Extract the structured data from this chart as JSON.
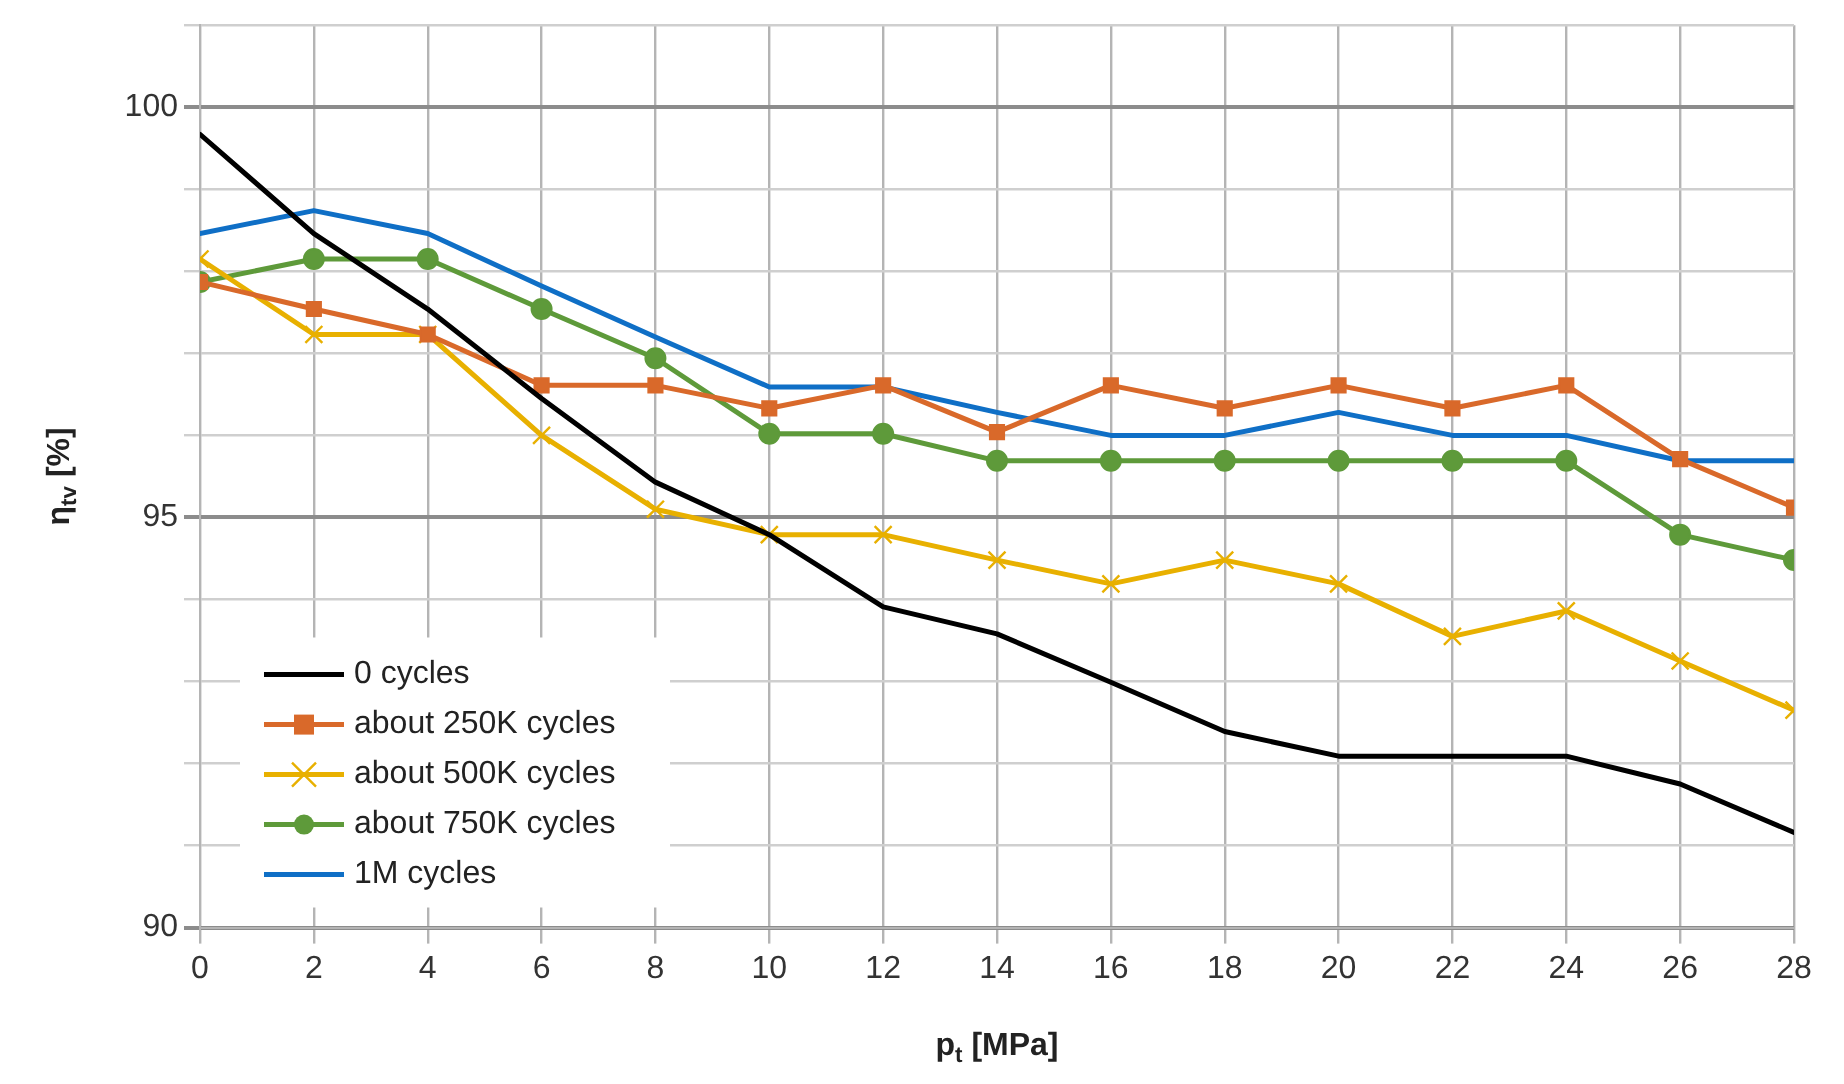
{
  "chart_data": {
    "type": "line",
    "xlabel": "p$_{t}$ [MPa]",
    "ylabel": "η$_{tv}$ [%]",
    "x": [
      0,
      2,
      4,
      6,
      8,
      10,
      12,
      14,
      16,
      18,
      20,
      22,
      24,
      26,
      28
    ],
    "series": [
      {
        "name": "0 cycles",
        "color": "#000000",
        "marker": "none",
        "values": [
          99.67,
          98.46,
          97.54,
          96.45,
          95.43,
          94.79,
          93.91,
          93.58,
          92.99,
          92.39,
          92.09,
          92.09,
          92.09,
          91.75,
          91.16
        ]
      },
      {
        "name": "about 250K cycles",
        "color": "#d9692a",
        "marker": "square",
        "values": [
          97.87,
          97.54,
          97.23,
          96.61,
          96.61,
          96.33,
          96.61,
          96.04,
          96.61,
          96.33,
          96.61,
          96.33,
          96.61,
          95.71,
          95.12
        ]
      },
      {
        "name": "about 500K cycles",
        "color": "#e8b000",
        "marker": "cross",
        "values": [
          98.15,
          97.23,
          97.23,
          96.0,
          95.1,
          94.79,
          94.79,
          94.48,
          94.19,
          94.48,
          94.19,
          93.55,
          93.86,
          93.25,
          92.65
        ]
      },
      {
        "name": "about 750K cycles",
        "color": "#5e9a3a",
        "marker": "circle",
        "values": [
          97.87,
          98.15,
          98.15,
          97.54,
          96.94,
          96.02,
          96.02,
          95.69,
          95.69,
          95.69,
          95.69,
          95.69,
          95.69,
          94.79,
          94.48
        ]
      },
      {
        "name": "1M cycles",
        "color": "#0f6fc6",
        "marker": "none",
        "values": [
          98.46,
          98.74,
          98.46,
          97.82,
          97.2,
          96.59,
          96.59,
          96.28,
          96.0,
          96.0,
          96.28,
          96.0,
          96.0,
          95.69,
          95.69
        ]
      }
    ],
    "xlim": [
      0,
      28
    ],
    "xticks": [
      0,
      2,
      4,
      6,
      8,
      10,
      12,
      14,
      16,
      18,
      20,
      22,
      24,
      26,
      28
    ],
    "ylim": [
      90,
      101
    ],
    "yticks": [
      90,
      {
        "value": 91,
        "label": null
      },
      {
        "value": 92,
        "label": null
      },
      {
        "value": 93,
        "label": null
      },
      {
        "value": 94,
        "label": null
      },
      95,
      {
        "value": 96,
        "label": null
      },
      {
        "value": 97,
        "label": null
      },
      {
        "value": 98,
        "label": null
      },
      {
        "value": 99,
        "label": null
      },
      100,
      {
        "value": 101,
        "label": null
      }
    ],
    "grid": true,
    "legend": "bottom left",
    "line_style": "solid"
  }
}
